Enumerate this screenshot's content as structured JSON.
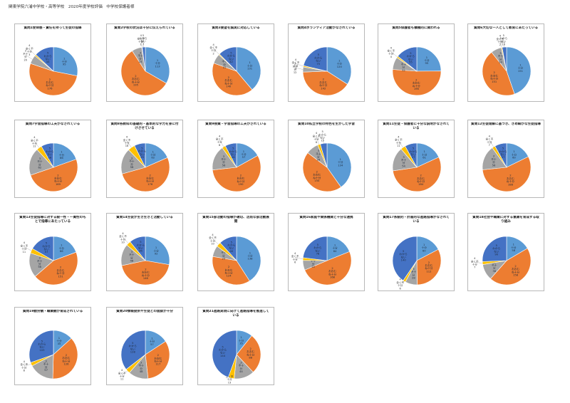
{
  "header": {
    "title": "関東学院六浦中学校・高等学校　2020年度学校評価　中学校保護者様"
  },
  "colors": {
    "1": "#5b9bd5",
    "2": "#ed7d31",
    "3": "#a5a5a5",
    "4": "#ffc000",
    "5": "#4472c4"
  },
  "categories": [
    "1 十分",
    "2 おおむね十分",
    "3 不十分",
    "4 全く不十分",
    "5 わからない"
  ],
  "chart_data": [
    {
      "type": "pie",
      "title": "質問1使命感・責任を持って生徒の指導",
      "values": [
        95,
        176,
        20,
        3,
        44
      ]
    },
    {
      "type": "pie",
      "title": "質問2学校の状況は十分に伝えられている",
      "values": [
        113,
        195,
        23,
        1,
        7
      ]
    },
    {
      "type": "pie",
      "title": "質問3要望を誠実に対応している",
      "values": [
        131,
        140,
        22,
        2,
        42
      ]
    },
    {
      "type": "pie",
      "title": "質問4ボランティア活動がなされている",
      "values": [
        120,
        142,
        12,
        3,
        75
      ]
    },
    {
      "type": "pie",
      "title": "質問5保護者も積極的に関われる",
      "values": [
        95,
        196,
        32,
        4,
        55
      ]
    },
    {
      "type": "pie",
      "title": "質問6大切な一人として教育にあたっている",
      "values": [
        151,
        151,
        24,
        2,
        10
      ]
    },
    {
      "type": "pie",
      "title": "質問7学習指導の工夫がなされている",
      "values": [
        66,
        169,
        62,
        12,
        28
      ]
    },
    {
      "type": "pie",
      "title": "質問8各教科の基礎的・基本的な学力を身に付けさせている",
      "values": [
        62,
        176,
        58,
        16,
        25
      ]
    },
    {
      "type": "pie",
      "title": "質問9授業・学習指導の工夫がされている",
      "values": [
        57,
        190,
        56,
        8,
        26
      ]
    },
    {
      "type": "pie",
      "title": "質問10私立学校の特色を生かした学習",
      "values": [
        134,
        150,
        28,
        6,
        15
      ]
    },
    {
      "type": "pie",
      "title": "質問11生徒・保護者に十分な説明がなされている",
      "values": [
        61,
        184,
        54,
        11,
        27
      ]
    },
    {
      "type": "pie",
      "title": "質問12生徒理解に基づき、きめ細かな生徒指導",
      "values": [
        60,
        188,
        56,
        7,
        27
      ]
    },
    {
      "type": "pie",
      "title": "質問13生徒指導に対する統一性・一貫性のもとで指導にあたっている",
      "values": [
        66,
        151,
        56,
        11,
        57
      ]
    },
    {
      "type": "pie",
      "title": "質問14生徒が生き生きと活動している",
      "values": [
        92,
        146,
        48,
        10,
        36
      ]
    },
    {
      "type": "pie",
      "title": "質問15部活動の指導が適切、活発な部活動展開",
      "values": [
        138,
        124,
        25,
        10,
        40
      ]
    },
    {
      "type": "pie",
      "title": "質問16家庭や関係機関と十分な連携",
      "values": [
        64,
        168,
        22,
        6,
        78
      ]
    },
    {
      "type": "pie",
      "title": "質問17系統的・計画的な進路指導がなされている",
      "values": [
        60,
        112,
        28,
        6,
        140
      ]
    },
    {
      "type": "pie",
      "title": "質問18社会や職業に対する意識を育成する取り組み",
      "values": [
        58,
        158,
        38,
        7,
        90
      ]
    },
    {
      "type": "pie",
      "title": "質問19勤労観・職業観が育成されている",
      "values": [
        45,
        126,
        57,
        8,
        103
      ]
    },
    {
      "type": "pie",
      "title": "質問20情報提供や生徒との面談が十分",
      "values": [
        57,
        117,
        48,
        11,
        128
      ]
    },
    {
      "type": "pie",
      "title": "質問21進路実現に向けて進路指導を推進している",
      "values": [
        35,
        88,
        44,
        13,
        144
      ]
    }
  ]
}
